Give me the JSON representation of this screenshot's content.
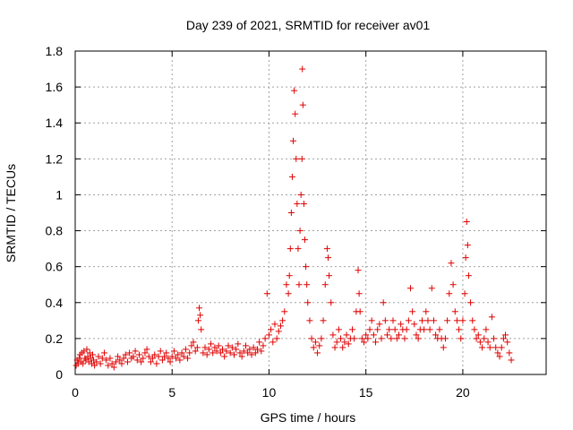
{
  "chart_data": {
    "type": "scatter",
    "title": "Day 239 of 2021, SRMTID for receiver av01",
    "xlabel": "GPS time / hours",
    "ylabel": "SRMTID / TECUs",
    "xlim": [
      0,
      24.3
    ],
    "ylim": [
      0,
      1.8
    ],
    "xticks": [
      0,
      5,
      10,
      15,
      20
    ],
    "xtick_labels": [
      "0",
      "5",
      "10",
      "15",
      "20"
    ],
    "yticks": [
      0,
      0.2,
      0.4,
      0.6,
      0.8,
      1.0,
      1.2,
      1.4,
      1.6,
      1.8
    ],
    "ytick_labels": [
      "0",
      "0.2",
      "0.4",
      "0.6",
      "0.8",
      "1",
      "1.2",
      "1.4",
      "1.6",
      "1.8"
    ],
    "grid": true,
    "marker": "plus",
    "color": "#e00000",
    "series": [
      {
        "name": "SRMTID",
        "points": [
          [
            0.05,
            0.05
          ],
          [
            0.1,
            0.08
          ],
          [
            0.15,
            0.06
          ],
          [
            0.2,
            0.09
          ],
          [
            0.25,
            0.11
          ],
          [
            0.3,
            0.07
          ],
          [
            0.35,
            0.12
          ],
          [
            0.4,
            0.06
          ],
          [
            0.45,
            0.13
          ],
          [
            0.5,
            0.09
          ],
          [
            0.55,
            0.08
          ],
          [
            0.6,
            0.14
          ],
          [
            0.65,
            0.1
          ],
          [
            0.7,
            0.07
          ],
          [
            0.75,
            0.12
          ],
          [
            0.8,
            0.09
          ],
          [
            0.85,
            0.06
          ],
          [
            0.9,
            0.11
          ],
          [
            0.95,
            0.08
          ],
          [
            1.0,
            0.05
          ],
          [
            1.1,
            0.07
          ],
          [
            1.2,
            0.1
          ],
          [
            1.3,
            0.06
          ],
          [
            1.4,
            0.09
          ],
          [
            1.5,
            0.12
          ],
          [
            1.6,
            0.08
          ],
          [
            1.7,
            0.05
          ],
          [
            1.8,
            0.09
          ],
          [
            1.9,
            0.06
          ],
          [
            2.0,
            0.04
          ],
          [
            2.1,
            0.07
          ],
          [
            2.2,
            0.1
          ],
          [
            2.3,
            0.08
          ],
          [
            2.4,
            0.06
          ],
          [
            2.5,
            0.09
          ],
          [
            2.6,
            0.11
          ],
          [
            2.7,
            0.07
          ],
          [
            2.8,
            0.12
          ],
          [
            2.9,
            0.09
          ],
          [
            3.0,
            0.1
          ],
          [
            3.1,
            0.13
          ],
          [
            3.2,
            0.08
          ],
          [
            3.3,
            0.11
          ],
          [
            3.4,
            0.07
          ],
          [
            3.5,
            0.09
          ],
          [
            3.6,
            0.12
          ],
          [
            3.7,
            0.14
          ],
          [
            3.8,
            0.1
          ],
          [
            3.9,
            0.07
          ],
          [
            4.0,
            0.09
          ],
          [
            4.1,
            0.11
          ],
          [
            4.2,
            0.06
          ],
          [
            4.3,
            0.1
          ],
          [
            4.4,
            0.13
          ],
          [
            4.5,
            0.08
          ],
          [
            4.6,
            0.1
          ],
          [
            4.7,
            0.12
          ],
          [
            4.8,
            0.09
          ],
          [
            4.9,
            0.07
          ],
          [
            5.0,
            0.1
          ],
          [
            5.1,
            0.13
          ],
          [
            5.2,
            0.09
          ],
          [
            5.3,
            0.11
          ],
          [
            5.4,
            0.08
          ],
          [
            5.5,
            0.12
          ],
          [
            5.6,
            0.1
          ],
          [
            5.7,
            0.14
          ],
          [
            5.8,
            0.09
          ],
          [
            5.9,
            0.12
          ],
          [
            6.0,
            0.16
          ],
          [
            6.1,
            0.18
          ],
          [
            6.2,
            0.13
          ],
          [
            6.3,
            0.15
          ],
          [
            6.35,
            0.3
          ],
          [
            6.4,
            0.37
          ],
          [
            6.45,
            0.33
          ],
          [
            6.5,
            0.25
          ],
          [
            6.6,
            0.12
          ],
          [
            6.7,
            0.15
          ],
          [
            6.8,
            0.11
          ],
          [
            6.9,
            0.14
          ],
          [
            7.0,
            0.17
          ],
          [
            7.1,
            0.12
          ],
          [
            7.2,
            0.15
          ],
          [
            7.3,
            0.13
          ],
          [
            7.4,
            0.16
          ],
          [
            7.5,
            0.12
          ],
          [
            7.6,
            0.14
          ],
          [
            7.7,
            0.1
          ],
          [
            7.8,
            0.13
          ],
          [
            7.9,
            0.16
          ],
          [
            8.0,
            0.12
          ],
          [
            8.1,
            0.15
          ],
          [
            8.2,
            0.11
          ],
          [
            8.3,
            0.14
          ],
          [
            8.4,
            0.17
          ],
          [
            8.5,
            0.12
          ],
          [
            8.6,
            0.1
          ],
          [
            8.7,
            0.13
          ],
          [
            8.8,
            0.16
          ],
          [
            8.9,
            0.12
          ],
          [
            9.0,
            0.14
          ],
          [
            9.1,
            0.11
          ],
          [
            9.2,
            0.15
          ],
          [
            9.3,
            0.12
          ],
          [
            9.4,
            0.14
          ],
          [
            9.5,
            0.18
          ],
          [
            9.6,
            0.13
          ],
          [
            9.7,
            0.16
          ],
          [
            9.8,
            0.2
          ],
          [
            9.9,
            0.45
          ],
          [
            10.0,
            0.22
          ],
          [
            10.1,
            0.25
          ],
          [
            10.2,
            0.18
          ],
          [
            10.3,
            0.28
          ],
          [
            10.4,
            0.2
          ],
          [
            10.5,
            0.24
          ],
          [
            10.6,
            0.27
          ],
          [
            10.7,
            0.3
          ],
          [
            10.8,
            0.35
          ],
          [
            10.9,
            0.5
          ],
          [
            11.0,
            0.45
          ],
          [
            11.05,
            0.55
          ],
          [
            11.1,
            0.7
          ],
          [
            11.15,
            0.9
          ],
          [
            11.2,
            1.1
          ],
          [
            11.25,
            1.3
          ],
          [
            11.3,
            1.58
          ],
          [
            11.35,
            1.45
          ],
          [
            11.4,
            1.2
          ],
          [
            11.45,
            0.95
          ],
          [
            11.5,
            0.7
          ],
          [
            11.55,
            0.5
          ],
          [
            11.6,
            0.8
          ],
          [
            11.65,
            1.0
          ],
          [
            11.7,
            1.2
          ],
          [
            11.72,
            1.7
          ],
          [
            11.75,
            1.5
          ],
          [
            11.8,
            0.95
          ],
          [
            11.85,
            0.75
          ],
          [
            11.9,
            0.6
          ],
          [
            11.95,
            0.5
          ],
          [
            12.0,
            0.4
          ],
          [
            12.1,
            0.3
          ],
          [
            12.2,
            0.2
          ],
          [
            12.3,
            0.15
          ],
          [
            12.4,
            0.18
          ],
          [
            12.5,
            0.12
          ],
          [
            12.6,
            0.16
          ],
          [
            12.7,
            0.2
          ],
          [
            12.8,
            0.3
          ],
          [
            12.9,
            0.5
          ],
          [
            13.0,
            0.7
          ],
          [
            13.05,
            0.65
          ],
          [
            13.1,
            0.55
          ],
          [
            13.2,
            0.4
          ],
          [
            13.3,
            0.22
          ],
          [
            13.4,
            0.15
          ],
          [
            13.5,
            0.18
          ],
          [
            13.6,
            0.25
          ],
          [
            13.7,
            0.2
          ],
          [
            13.8,
            0.15
          ],
          [
            13.9,
            0.18
          ],
          [
            14.0,
            0.22
          ],
          [
            14.1,
            0.17
          ],
          [
            14.2,
            0.2
          ],
          [
            14.3,
            0.25
          ],
          [
            14.4,
            0.2
          ],
          [
            14.5,
            0.35
          ],
          [
            14.6,
            0.58
          ],
          [
            14.65,
            0.45
          ],
          [
            14.7,
            0.35
          ],
          [
            14.8,
            0.2
          ],
          [
            14.9,
            0.18
          ],
          [
            15.0,
            0.22
          ],
          [
            15.1,
            0.2
          ],
          [
            15.2,
            0.25
          ],
          [
            15.3,
            0.3
          ],
          [
            15.4,
            0.22
          ],
          [
            15.5,
            0.18
          ],
          [
            15.6,
            0.25
          ],
          [
            15.7,
            0.28
          ],
          [
            15.8,
            0.2
          ],
          [
            15.9,
            0.4
          ],
          [
            16.0,
            0.3
          ],
          [
            16.1,
            0.22
          ],
          [
            16.2,
            0.25
          ],
          [
            16.3,
            0.2
          ],
          [
            16.4,
            0.3
          ],
          [
            16.5,
            0.25
          ],
          [
            16.6,
            0.2
          ],
          [
            16.7,
            0.22
          ],
          [
            16.8,
            0.28
          ],
          [
            16.9,
            0.25
          ],
          [
            17.0,
            0.2
          ],
          [
            17.1,
            0.25
          ],
          [
            17.2,
            0.3
          ],
          [
            17.3,
            0.48
          ],
          [
            17.4,
            0.35
          ],
          [
            17.5,
            0.28
          ],
          [
            17.6,
            0.22
          ],
          [
            17.7,
            0.2
          ],
          [
            17.8,
            0.25
          ],
          [
            17.9,
            0.3
          ],
          [
            18.0,
            0.25
          ],
          [
            18.1,
            0.35
          ],
          [
            18.2,
            0.3
          ],
          [
            18.3,
            0.25
          ],
          [
            18.4,
            0.48
          ],
          [
            18.5,
            0.3
          ],
          [
            18.6,
            0.22
          ],
          [
            18.7,
            0.2
          ],
          [
            18.8,
            0.25
          ],
          [
            18.9,
            0.2
          ],
          [
            19.0,
            0.15
          ],
          [
            19.1,
            0.2
          ],
          [
            19.2,
            0.3
          ],
          [
            19.3,
            0.45
          ],
          [
            19.4,
            0.62
          ],
          [
            19.5,
            0.5
          ],
          [
            19.6,
            0.35
          ],
          [
            19.7,
            0.3
          ],
          [
            19.8,
            0.25
          ],
          [
            19.9,
            0.2
          ],
          [
            20.0,
            0.3
          ],
          [
            20.1,
            0.45
          ],
          [
            20.15,
            0.65
          ],
          [
            20.2,
            0.85
          ],
          [
            20.25,
            0.72
          ],
          [
            20.3,
            0.55
          ],
          [
            20.4,
            0.4
          ],
          [
            20.5,
            0.3
          ],
          [
            20.6,
            0.25
          ],
          [
            20.7,
            0.2
          ],
          [
            20.8,
            0.22
          ],
          [
            20.9,
            0.18
          ],
          [
            21.0,
            0.15
          ],
          [
            21.1,
            0.2
          ],
          [
            21.2,
            0.25
          ],
          [
            21.3,
            0.18
          ],
          [
            21.4,
            0.15
          ],
          [
            21.5,
            0.32
          ],
          [
            21.6,
            0.2
          ],
          [
            21.7,
            0.15
          ],
          [
            21.8,
            0.12
          ],
          [
            21.9,
            0.1
          ],
          [
            22.0,
            0.15
          ],
          [
            22.1,
            0.2
          ],
          [
            22.2,
            0.22
          ],
          [
            22.3,
            0.18
          ],
          [
            22.4,
            0.12
          ],
          [
            22.5,
            0.08
          ]
        ]
      }
    ]
  }
}
